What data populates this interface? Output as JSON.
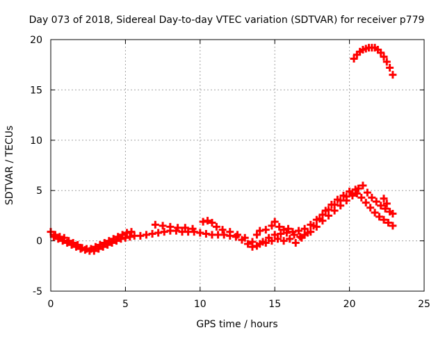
{
  "chart_data": {
    "type": "scatter",
    "title": "Day 073 of 2018, Sidereal Day-to-day VTEC variation (SDTVAR) for receiver p779",
    "xlabel": "GPS time / hours",
    "ylabel": "SDTVAR / TECUs",
    "xlim": [
      0,
      25
    ],
    "ylim": [
      -5,
      20
    ],
    "xticks": [
      0,
      5,
      10,
      15,
      20,
      25
    ],
    "xtick_labels": [
      "0",
      "5",
      "10",
      "15",
      "20",
      "25"
    ],
    "yticks": [
      -5,
      0,
      5,
      10,
      15,
      20
    ],
    "ytick_labels": [
      "-5",
      "0",
      "5",
      "10",
      "15",
      "20"
    ],
    "grid": true,
    "marker": "plus",
    "series": [
      {
        "name": "SDTVAR p779",
        "color": "#ff0000",
        "points": [
          [
            0.0,
            0.9
          ],
          [
            0.3,
            0.6
          ],
          [
            0.6,
            0.4
          ],
          [
            0.9,
            0.3
          ],
          [
            1.2,
            0.0
          ],
          [
            1.5,
            -0.2
          ],
          [
            1.8,
            -0.4
          ],
          [
            2.1,
            -0.7
          ],
          [
            2.4,
            -0.8
          ],
          [
            2.7,
            -0.8
          ],
          [
            3.0,
            -0.6
          ],
          [
            3.3,
            -0.4
          ],
          [
            3.6,
            -0.2
          ],
          [
            3.9,
            0.0
          ],
          [
            4.2,
            0.2
          ],
          [
            4.5,
            0.4
          ],
          [
            4.8,
            0.6
          ],
          [
            5.1,
            0.8
          ],
          [
            5.4,
            0.9
          ],
          [
            0.2,
            0.4
          ],
          [
            0.5,
            0.2
          ],
          [
            0.8,
            0.0
          ],
          [
            1.1,
            -0.2
          ],
          [
            1.4,
            -0.4
          ],
          [
            1.7,
            -0.6
          ],
          [
            2.0,
            -0.8
          ],
          [
            2.3,
            -0.9
          ],
          [
            2.6,
            -1.0
          ],
          [
            2.9,
            -1.0
          ],
          [
            3.2,
            -0.8
          ],
          [
            3.5,
            -0.6
          ],
          [
            3.8,
            -0.4
          ],
          [
            4.1,
            -0.2
          ],
          [
            4.4,
            0.0
          ],
          [
            4.7,
            0.2
          ],
          [
            5.0,
            0.3
          ],
          [
            5.3,
            0.4
          ],
          [
            5.6,
            0.5
          ],
          [
            6.0,
            0.5
          ],
          [
            6.4,
            0.6
          ],
          [
            6.8,
            0.7
          ],
          [
            7.2,
            0.8
          ],
          [
            7.6,
            0.9
          ],
          [
            8.0,
            1.0
          ],
          [
            8.4,
            1.0
          ],
          [
            8.8,
            0.9
          ],
          [
            9.2,
            0.9
          ],
          [
            9.6,
            0.9
          ],
          [
            10.0,
            0.8
          ],
          [
            10.4,
            0.7
          ],
          [
            10.8,
            0.6
          ],
          [
            11.2,
            0.6
          ],
          [
            11.6,
            0.6
          ],
          [
            12.0,
            0.5
          ],
          [
            12.4,
            0.4
          ],
          [
            12.8,
            0.1
          ],
          [
            13.2,
            -0.3
          ],
          [
            13.5,
            -0.6
          ],
          [
            13.8,
            -0.5
          ],
          [
            14.2,
            -0.1
          ],
          [
            14.6,
            0.3
          ],
          [
            15.0,
            0.6
          ],
          [
            15.4,
            0.7
          ],
          [
            15.8,
            0.8
          ],
          [
            16.2,
            0.9
          ],
          [
            16.6,
            1.0
          ],
          [
            17.0,
            1.2
          ],
          [
            17.4,
            1.6
          ],
          [
            17.8,
            2.1
          ],
          [
            18.2,
            2.6
          ],
          [
            18.6,
            3.1
          ],
          [
            19.0,
            3.6
          ],
          [
            19.4,
            4.0
          ],
          [
            19.8,
            4.4
          ],
          [
            20.2,
            4.7
          ],
          [
            20.5,
            4.7
          ],
          [
            20.8,
            4.3
          ],
          [
            21.1,
            3.8
          ],
          [
            21.4,
            3.3
          ],
          [
            21.7,
            2.8
          ],
          [
            22.0,
            2.4
          ],
          [
            22.3,
            2.1
          ],
          [
            22.6,
            1.8
          ],
          [
            22.9,
            1.5
          ],
          [
            7.0,
            1.6
          ],
          [
            7.5,
            1.5
          ],
          [
            8.0,
            1.4
          ],
          [
            8.5,
            1.3
          ],
          [
            9.0,
            1.3
          ],
          [
            9.5,
            1.2
          ],
          [
            10.2,
            1.9
          ],
          [
            10.5,
            2.0
          ],
          [
            10.8,
            1.8
          ],
          [
            11.1,
            1.4
          ],
          [
            11.5,
            1.1
          ],
          [
            12.0,
            0.9
          ],
          [
            12.5,
            0.6
          ],
          [
            13.0,
            0.3
          ],
          [
            13.5,
            -0.1
          ],
          [
            13.8,
            0.6
          ],
          [
            14.0,
            1.0
          ],
          [
            14.4,
            1.1
          ],
          [
            14.8,
            1.5
          ],
          [
            15.0,
            1.9
          ],
          [
            15.3,
            1.4
          ],
          [
            15.6,
            1.1
          ],
          [
            15.9,
            1.2
          ],
          [
            16.3,
            0.6
          ],
          [
            16.7,
            0.4
          ],
          [
            17.0,
            0.6
          ],
          [
            17.4,
            0.9
          ],
          [
            17.8,
            1.4
          ],
          [
            18.2,
            2.0
          ],
          [
            18.6,
            2.5
          ],
          [
            19.0,
            3.0
          ],
          [
            19.4,
            3.5
          ],
          [
            19.8,
            4.0
          ],
          [
            20.2,
            4.5
          ],
          [
            20.6,
            5.2
          ],
          [
            20.9,
            5.5
          ],
          [
            21.2,
            4.8
          ],
          [
            21.5,
            4.3
          ],
          [
            21.8,
            3.9
          ],
          [
            22.1,
            3.5
          ],
          [
            22.4,
            3.2
          ],
          [
            22.7,
            2.9
          ],
          [
            22.9,
            2.7
          ],
          [
            22.3,
            4.2
          ],
          [
            22.5,
            3.7
          ],
          [
            14.0,
            -0.3
          ],
          [
            14.4,
            -0.2
          ],
          [
            14.8,
            0.0
          ],
          [
            15.2,
            0.2
          ],
          [
            15.6,
            0.0
          ],
          [
            16.0,
            0.2
          ],
          [
            16.4,
            -0.2
          ],
          [
            16.8,
            0.3
          ],
          [
            17.2,
            0.8
          ],
          [
            17.6,
            1.5
          ],
          [
            18.0,
            2.2
          ],
          [
            18.4,
            3.0
          ],
          [
            18.8,
            3.6
          ],
          [
            19.2,
            4.1
          ],
          [
            19.6,
            4.5
          ],
          [
            20.0,
            4.9
          ],
          [
            20.4,
            5.1
          ],
          [
            20.3,
            18.1
          ],
          [
            20.5,
            18.5
          ],
          [
            20.7,
            18.8
          ],
          [
            20.9,
            19.0
          ],
          [
            21.1,
            19.1
          ],
          [
            21.3,
            19.2
          ],
          [
            21.5,
            19.2
          ],
          [
            21.7,
            19.2
          ],
          [
            21.9,
            19.0
          ],
          [
            22.1,
            18.7
          ],
          [
            22.3,
            18.3
          ],
          [
            22.5,
            17.8
          ],
          [
            22.7,
            17.2
          ],
          [
            22.9,
            16.5
          ]
        ]
      }
    ]
  }
}
